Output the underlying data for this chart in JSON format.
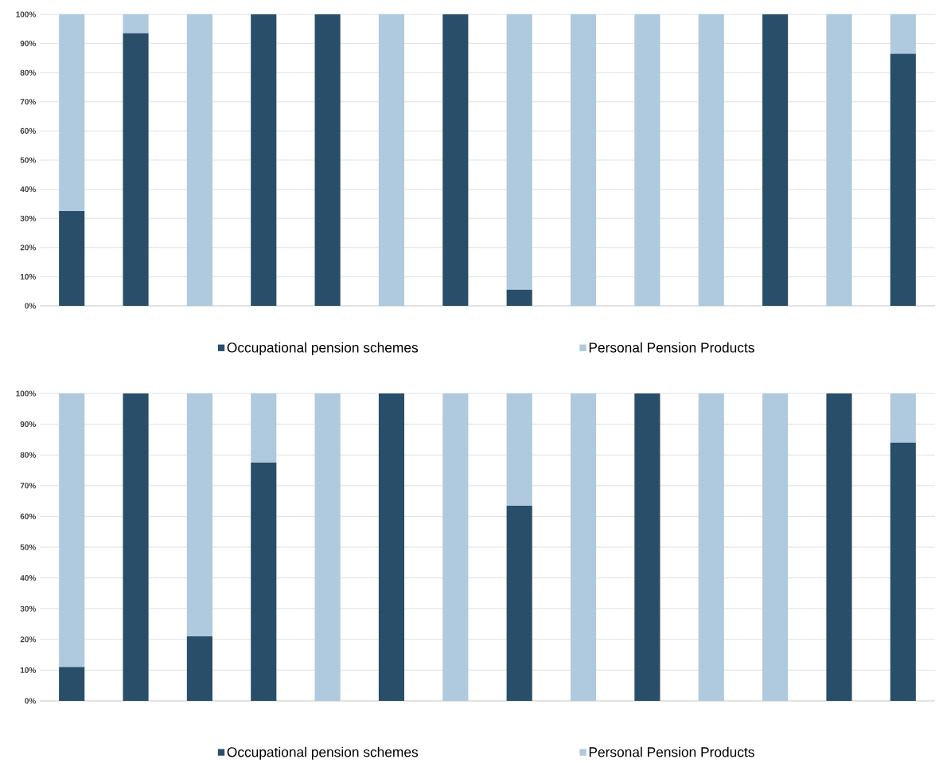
{
  "chart_data": [
    {
      "type": "bar",
      "stacked": true,
      "categories": [
        null,
        null,
        null,
        null,
        null,
        null,
        null,
        null,
        null,
        null,
        null,
        null,
        null,
        null
      ],
      "series": [
        {
          "name": "Occupational pension schemes",
          "color": "#284e6a",
          "values": [
            32.5,
            93.5,
            0,
            100,
            100,
            0,
            100,
            5.5,
            0,
            0,
            0,
            100,
            0,
            86.5
          ]
        },
        {
          "name": "Personal Pension Products",
          "color": "#afc9de",
          "values": [
            67.5,
            6.5,
            100,
            0,
            0,
            100,
            0,
            94.5,
            100,
            100,
            100,
            0,
            100,
            13.5
          ]
        }
      ],
      "ylim": [
        0,
        100
      ],
      "yticks": [
        {
          "value": 0,
          "label": "0%"
        },
        {
          "value": 10,
          "label": "10%"
        },
        {
          "value": 20,
          "label": "20%"
        },
        {
          "value": 30,
          "label": "30%"
        },
        {
          "value": 40,
          "label": "40%"
        },
        {
          "value": 50,
          "label": "50%"
        },
        {
          "value": 60,
          "label": "60%"
        },
        {
          "value": 70,
          "label": "70%"
        },
        {
          "value": 80,
          "label": "80%"
        },
        {
          "value": 90,
          "label": "90%"
        },
        {
          "value": 100,
          "label": "100%"
        }
      ],
      "grid": "y",
      "legend": "bottom"
    },
    {
      "type": "bar",
      "stacked": true,
      "categories": [
        null,
        null,
        null,
        null,
        null,
        null,
        null,
        null,
        null,
        null,
        null,
        null,
        null,
        null
      ],
      "series": [
        {
          "name": "Occupational pension schemes",
          "color": "#284e6a",
          "values": [
            11,
            100,
            21,
            77.5,
            0,
            100,
            0,
            63.5,
            0,
            100,
            0,
            0,
            100,
            84
          ]
        },
        {
          "name": "Personal Pension Products",
          "color": "#afc9de",
          "values": [
            89,
            0,
            79,
            22.5,
            100,
            0,
            100,
            36.5,
            100,
            0,
            100,
            100,
            0,
            16
          ]
        }
      ],
      "ylim": [
        0,
        100
      ],
      "yticks": [
        {
          "value": 0,
          "label": "0%"
        },
        {
          "value": 10,
          "label": "10%"
        },
        {
          "value": 20,
          "label": "20%"
        },
        {
          "value": 30,
          "label": "30%"
        },
        {
          "value": 40,
          "label": "40%"
        },
        {
          "value": 50,
          "label": "50%"
        },
        {
          "value": 60,
          "label": "60%"
        },
        {
          "value": 70,
          "label": "70%"
        },
        {
          "value": 80,
          "label": "80%"
        },
        {
          "value": 90,
          "label": "90%"
        },
        {
          "value": 100,
          "label": "100%"
        }
      ],
      "grid": "y",
      "legend": "bottom"
    }
  ]
}
